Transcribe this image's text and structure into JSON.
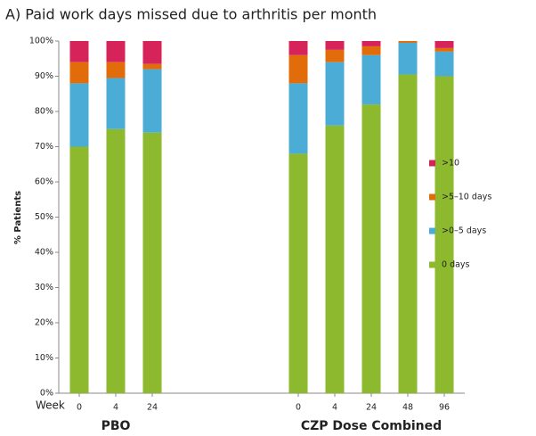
{
  "chart_data": {
    "type": "stacked_bar",
    "title": "A) Paid work days missed due to arthritis per month",
    "y_label": "% Patients",
    "x_label": "Week",
    "groups": [
      {
        "name": "PBO",
        "categories": [
          "0",
          "4",
          "24"
        ]
      },
      {
        "name": "CZP Dose Combined",
        "categories": [
          "0",
          "4",
          "24",
          "48",
          "96"
        ]
      }
    ],
    "series": [
      {
        "name": "0 days",
        "color": "#8db92e",
        "values": [
          70,
          75,
          74,
          68,
          76,
          82,
          90.5,
          90
        ]
      },
      {
        "name": ">0–5 days",
        "color": "#4bacd6",
        "values": [
          18,
          14.5,
          18,
          20,
          18,
          14,
          9,
          7
        ]
      },
      {
        "name": ">5–10 days",
        "color": "#e36c0a",
        "values": [
          6,
          4.5,
          1.5,
          8,
          3.5,
          2.5,
          0.5,
          1
        ]
      },
      {
        "name": ">10",
        "color": "#d6245a",
        "values": [
          6,
          6,
          6.5,
          4,
          2.5,
          1.5,
          0,
          2
        ]
      }
    ],
    "ylim": [
      0,
      100
    ],
    "yticks": [
      {
        "value": 0,
        "label": "0%"
      },
      {
        "value": 10,
        "label": "10%"
      },
      {
        "value": 20,
        "label": "20%"
      },
      {
        "value": 30,
        "label": "30%"
      },
      {
        "value": 40,
        "label": "40%"
      },
      {
        "value": 50,
        "label": "50%"
      },
      {
        "value": 60,
        "label": "60%"
      },
      {
        "value": 70,
        "label": "70%"
      },
      {
        "value": 80,
        "label": "80%"
      },
      {
        "value": 90,
        "label": "90%"
      },
      {
        "value": 100,
        "label": "100%"
      }
    ],
    "grid": false,
    "legend": "right"
  }
}
